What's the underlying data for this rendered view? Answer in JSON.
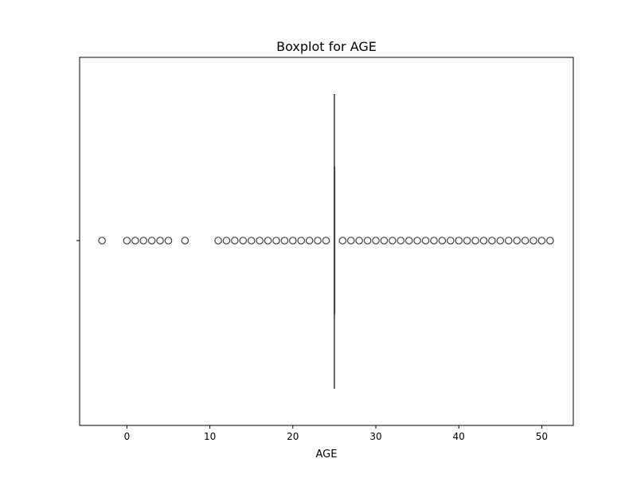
{
  "chart_data": {
    "type": "box",
    "title": "Boxplot for AGE",
    "xlabel": "AGE",
    "ylabel": "",
    "orientation": "horizontal",
    "xlim": [
      -5.7,
      53.8
    ],
    "xticks": [
      0,
      10,
      20,
      30,
      40,
      50
    ],
    "grid": false,
    "box": {
      "q1": 25,
      "median": 25,
      "q3": 25,
      "whisker_low": 25,
      "whisker_high": 25
    },
    "outliers": [
      -3,
      0,
      1,
      2,
      3,
      4,
      5,
      7,
      11,
      12,
      13,
      14,
      15,
      16,
      17,
      18,
      19,
      20,
      21,
      22,
      23,
      24,
      26,
      27,
      28,
      29,
      30,
      31,
      32,
      33,
      34,
      35,
      36,
      37,
      38,
      39,
      40,
      41,
      42,
      43,
      44,
      45,
      46,
      47,
      48,
      49,
      50,
      51
    ]
  }
}
